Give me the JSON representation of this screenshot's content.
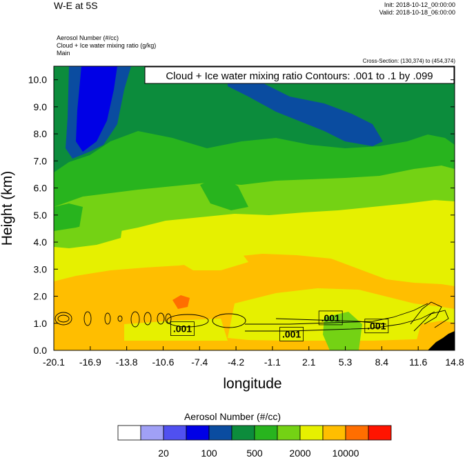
{
  "header": {
    "title": "W-E at 5S",
    "init": "Init: 2018-10-12_00:00:00",
    "valid": "Valid: 2018-10-18_06:00:00",
    "var1": "Aerosol Number   (#/cc)",
    "var2": "Cloud + Ice water mixing ratio   (g/kg)",
    "var3": "Main",
    "cross_section": "Cross-Section: (130,374) to (454,374)"
  },
  "chart_data": {
    "type": "heatmap",
    "title": "Cloud + Ice water mixing ratio Contours: .001 to .1 by .099",
    "xlabel": "longitude",
    "ylabel": "Height (km)",
    "x_ticks": [
      "-20.1",
      "-16.9",
      "-13.8",
      "-10.6",
      "-7.4",
      "-4.2",
      "-1.1",
      "2.1",
      "5.3",
      "8.4",
      "11.6",
      "14.8"
    ],
    "y_ticks": [
      "0.0",
      "1.0",
      "2.0",
      "3.0",
      "4.0",
      "5.0",
      "6.0",
      "7.0",
      "8.0",
      "9.0",
      "10.0"
    ],
    "xlim": [
      -20.1,
      14.8
    ],
    "ylim": [
      0,
      10.5
    ],
    "contour_labels": [
      {
        "text": ".001",
        "x": -8.9,
        "y": 0.8
      },
      {
        "text": ".001",
        "x": 0.6,
        "y": 0.6
      },
      {
        "text": ".001",
        "x": 4.0,
        "y": 1.2
      },
      {
        "text": ".001",
        "x": 8.0,
        "y": 0.9
      }
    ],
    "colorbar": {
      "title": "Aerosol Number  (#/cc)",
      "colors": [
        "#ffffff",
        "#a0a0f6",
        "#5050f0",
        "#0000e6",
        "#0a4ca0",
        "#0c8c3c",
        "#28b41e",
        "#74d214",
        "#e6f000",
        "#ffbe00",
        "#ff6e00",
        "#ff1400"
      ],
      "tick_labels": [
        "20",
        "100",
        "500",
        "2000",
        "10000"
      ]
    }
  }
}
